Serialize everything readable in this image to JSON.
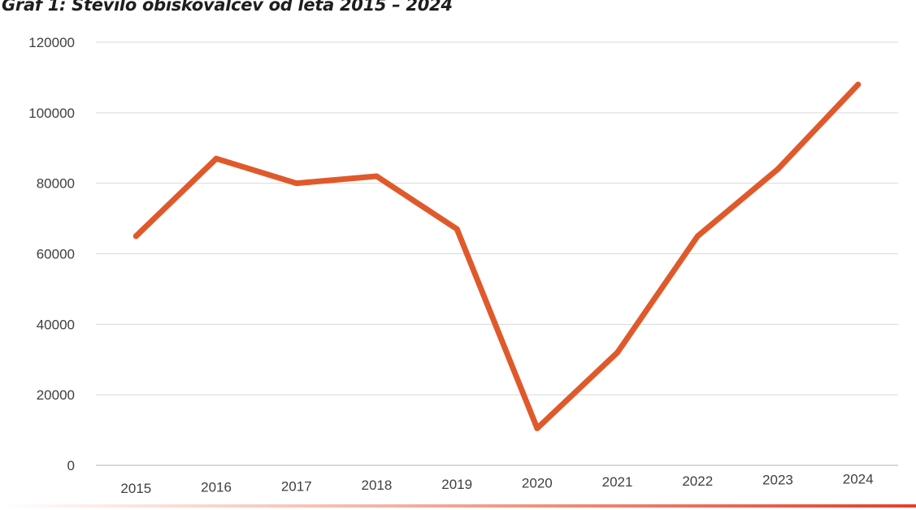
{
  "page": {
    "title": "Graf 1: Število obiskovalcev od leta 2015 – 2024"
  },
  "chart_data": {
    "type": "line",
    "title": "Graf 1: Število obiskovalcev od leta 2015 – 2024",
    "xlabel": "",
    "ylabel": "",
    "categories": [
      "2015",
      "2016",
      "2017",
      "2018",
      "2019",
      "2020",
      "2021",
      "2022",
      "2023",
      "2024"
    ],
    "series": [
      {
        "values": [
          65000,
          87000,
          80000,
          82000,
          67000,
          10500,
          32000,
          65000,
          84000,
          108000
        ]
      }
    ],
    "ylim": [
      0,
      120000
    ],
    "yticks": [
      "0",
      "20000",
      "40000",
      "60000",
      "80000",
      "100000",
      "120000"
    ],
    "grid": true,
    "legend": "none",
    "colors": {
      "series": "#e0592b",
      "grid": "#d9d9d9",
      "axis": "#bfbfbf",
      "text": "#404040"
    }
  }
}
